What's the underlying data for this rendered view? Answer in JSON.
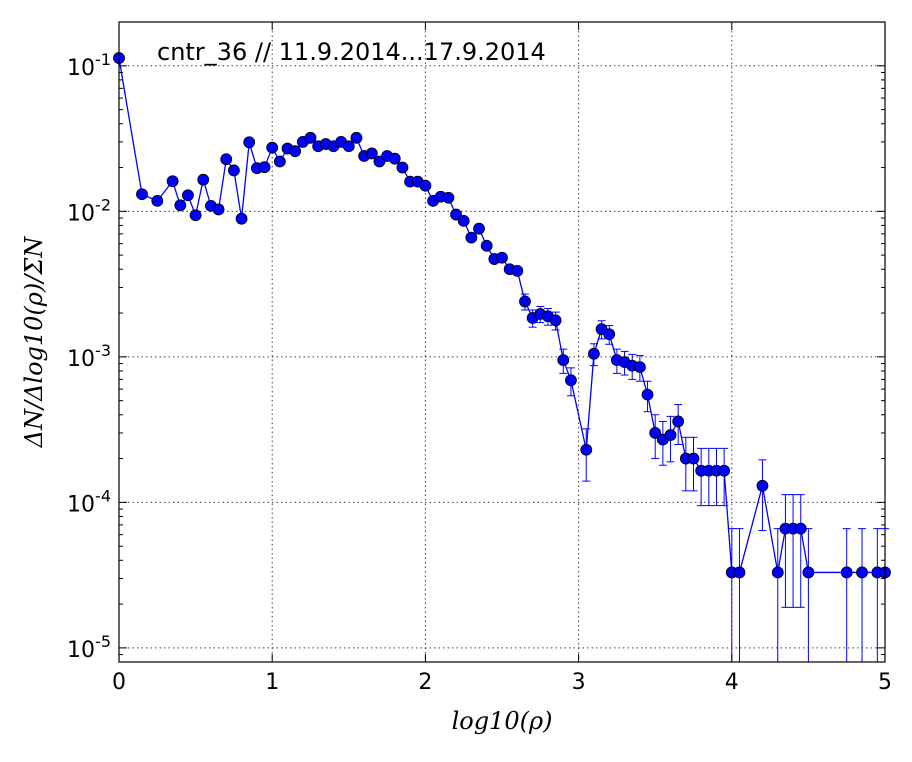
{
  "chart_data": {
    "type": "line",
    "title": "cntr_36 // 11.9.2014...17.9.2014",
    "xlabel": "log10(ρ)",
    "ylabel": "ΔN/Δlog10(ρ)/ΣN",
    "xlim": [
      0,
      5
    ],
    "ylim": [
      8e-06,
      0.2
    ],
    "yscale": "log",
    "grid": true,
    "xticks": [
      0,
      1,
      2,
      3,
      4,
      5
    ],
    "xtick_labels": [
      "0",
      "1",
      "2",
      "3",
      "4",
      "5"
    ],
    "yticks": [
      1e-05,
      0.0001,
      0.001,
      0.01,
      0.1
    ],
    "ytick_labels": [
      {
        "base": "10",
        "exp": "-5"
      },
      {
        "base": "10",
        "exp": "-4"
      },
      {
        "base": "10",
        "exp": "-3"
      },
      {
        "base": "10",
        "exp": "-2"
      },
      {
        "base": "10",
        "exp": "-1"
      }
    ],
    "series_color": "#0000ff",
    "marker_edge": "#000000",
    "x": [
      0,
      0.15,
      0.25,
      0.35,
      0.4,
      0.45,
      0.5,
      0.55,
      0.6,
      0.65,
      0.7,
      0.75,
      0.8,
      0.85,
      0.9,
      0.95,
      1.0,
      1.05,
      1.1,
      1.15,
      1.2,
      1.25,
      1.3,
      1.35,
      1.4,
      1.45,
      1.5,
      1.55,
      1.6,
      1.65,
      1.7,
      1.75,
      1.8,
      1.85,
      1.9,
      1.95,
      2.0,
      2.05,
      2.1,
      2.15,
      2.2,
      2.25,
      2.3,
      2.35,
      2.4,
      2.45,
      2.5,
      2.55,
      2.6,
      2.65,
      2.7,
      2.75,
      2.8,
      2.85,
      2.9,
      2.95,
      3.05,
      3.1,
      3.15,
      3.2,
      3.25,
      3.3,
      3.35,
      3.4,
      3.45,
      3.5,
      3.55,
      3.6,
      3.65,
      3.7,
      3.75,
      3.8,
      3.85,
      3.9,
      3.95,
      4.0,
      4.05,
      4.2,
      4.3,
      4.35,
      4.4,
      4.45,
      4.5,
      4.75,
      4.85,
      4.95,
      5.0
    ],
    "y": [
      0.113,
      0.0131,
      0.0118,
      0.0161,
      0.011,
      0.0129,
      0.0094,
      0.0165,
      0.0109,
      0.0103,
      0.0228,
      0.0191,
      0.0089,
      0.0298,
      0.0198,
      0.0201,
      0.0274,
      0.022,
      0.027,
      0.0259,
      0.03,
      0.032,
      0.028,
      0.029,
      0.028,
      0.03,
      0.028,
      0.032,
      0.024,
      0.025,
      0.022,
      0.024,
      0.023,
      0.02,
      0.016,
      0.016,
      0.015,
      0.0118,
      0.0126,
      0.0124,
      0.0095,
      0.0086,
      0.0066,
      0.0076,
      0.0058,
      0.0047,
      0.0048,
      0.004,
      0.0039,
      0.0024,
      0.00185,
      0.00197,
      0.0019,
      0.00178,
      0.00095,
      0.00069,
      0.00023,
      0.00105,
      0.00155,
      0.00143,
      0.00095,
      0.00092,
      0.00087,
      0.00085,
      0.00055,
      0.0003,
      0.00027,
      0.00029,
      0.00036,
      0.0002,
      0.0002,
      0.000165,
      0.000165,
      0.000165,
      0.000165,
      3.3e-05,
      3.3e-05,
      0.00013,
      3.3e-05,
      6.6e-05,
      6.6e-05,
      6.6e-05,
      3.3e-05,
      3.3e-05,
      3.3e-05,
      3.3e-05,
      3.3e-05
    ],
    "yerr": [
      0.001,
      0.0003,
      0.0003,
      0.0004,
      0.0003,
      0.0003,
      0.0003,
      0.0004,
      0.0003,
      0.0003,
      0.0005,
      0.0004,
      0.0003,
      0.0006,
      0.0004,
      0.0004,
      0.0006,
      0.0005,
      0.0006,
      0.0005,
      0.0006,
      0.0006,
      0.0006,
      0.0006,
      0.0006,
      0.0006,
      0.0006,
      0.0006,
      0.0005,
      0.0005,
      0.0005,
      0.0005,
      0.0005,
      0.0004,
      0.0004,
      0.0004,
      0.0004,
      0.0003,
      0.0003,
      0.0003,
      0.0003,
      0.0003,
      0.0003,
      0.0003,
      0.0002,
      0.0002,
      0.0002,
      0.0002,
      0.0002,
      0.0003,
      0.00025,
      0.00025,
      0.00025,
      0.00025,
      0.00018,
      0.00015,
      9e-05,
      0.00018,
      0.00022,
      0.00021,
      0.00018,
      0.00017,
      0.00017,
      0.00017,
      0.00013,
      0.0001,
      9e-05,
      0.0001,
      0.00011,
      8e-05,
      8e-05,
      7e-05,
      7e-05,
      7e-05,
      7e-05,
      3.3e-05,
      3.3e-05,
      6.6e-05,
      3.3e-05,
      4.7e-05,
      4.7e-05,
      4.7e-05,
      3.3e-05,
      3.3e-05,
      3.3e-05,
      3.3e-05,
      3.3e-05
    ]
  }
}
